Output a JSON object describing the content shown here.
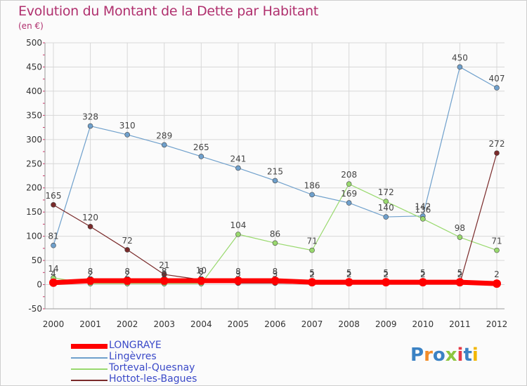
{
  "title": "Evolution du Montant de la Dette par Habitant",
  "unit": "(en €)",
  "logo": {
    "text": "Proxiti",
    "colors": [
      "#3b82c4",
      "#f28c28",
      "#3b82c4",
      "#8dc63f",
      "#e63946",
      "#3b82c4",
      "#f2b705"
    ]
  },
  "chart_data": {
    "type": "line",
    "x": [
      "2000",
      "2001",
      "2002",
      "2003",
      "2004",
      "2005",
      "2006",
      "2007",
      "2008",
      "2009",
      "2010",
      "2011",
      "2012"
    ],
    "ylim": [
      -50,
      500
    ],
    "yticks": [
      "-50",
      "0",
      "50",
      "100",
      "150",
      "200",
      "250",
      "300",
      "350",
      "400",
      "450",
      "500"
    ],
    "grid": true,
    "legend_position": "bottom-left",
    "series": [
      {
        "name": "LONGRAYE",
        "color": "#ff0000",
        "width": 7,
        "marker": 6,
        "values": [
          4,
          8,
          8,
          8,
          8,
          8,
          8,
          5,
          5,
          5,
          5,
          5,
          2
        ],
        "labels": [
          "4",
          "8",
          "8",
          "8",
          "8",
          "8",
          "8",
          "5",
          "5",
          "5",
          "5",
          "5",
          "2"
        ]
      },
      {
        "name": "Lingèvres",
        "color": "#6fa0cc",
        "width": 1.2,
        "marker": 3.5,
        "values": [
          81,
          328,
          310,
          289,
          265,
          241,
          215,
          186,
          169,
          140,
          142,
          450,
          407
        ],
        "labels": [
          "81",
          "328",
          "310",
          "289",
          "265",
          "241",
          "215",
          "186",
          "169",
          "140",
          "142",
          "450",
          "407"
        ]
      },
      {
        "name": "Torteval-Quesnay",
        "color": "#99d96e",
        "width": 1.2,
        "marker": 3.5,
        "values": [
          14,
          2,
          2,
          2,
          2,
          104,
          86,
          71,
          208,
          172,
          136,
          98,
          71
        ],
        "labels": [
          "14",
          "2",
          "2",
          "2",
          "2",
          "104",
          "86",
          "71",
          "208",
          "172",
          "136",
          "98",
          "71"
        ]
      },
      {
        "name": "Hottot-les-Bagues",
        "color": "#7a2a2a",
        "width": 1.2,
        "marker": 3.5,
        "values": [
          165,
          120,
          72,
          21,
          10,
          3,
          3,
          2,
          2,
          2,
          2,
          2,
          272
        ],
        "labels": [
          "165",
          "120",
          "72",
          "21",
          "10",
          "3",
          "3",
          "2",
          "2",
          "2",
          "2",
          "2",
          "272"
        ]
      }
    ]
  }
}
